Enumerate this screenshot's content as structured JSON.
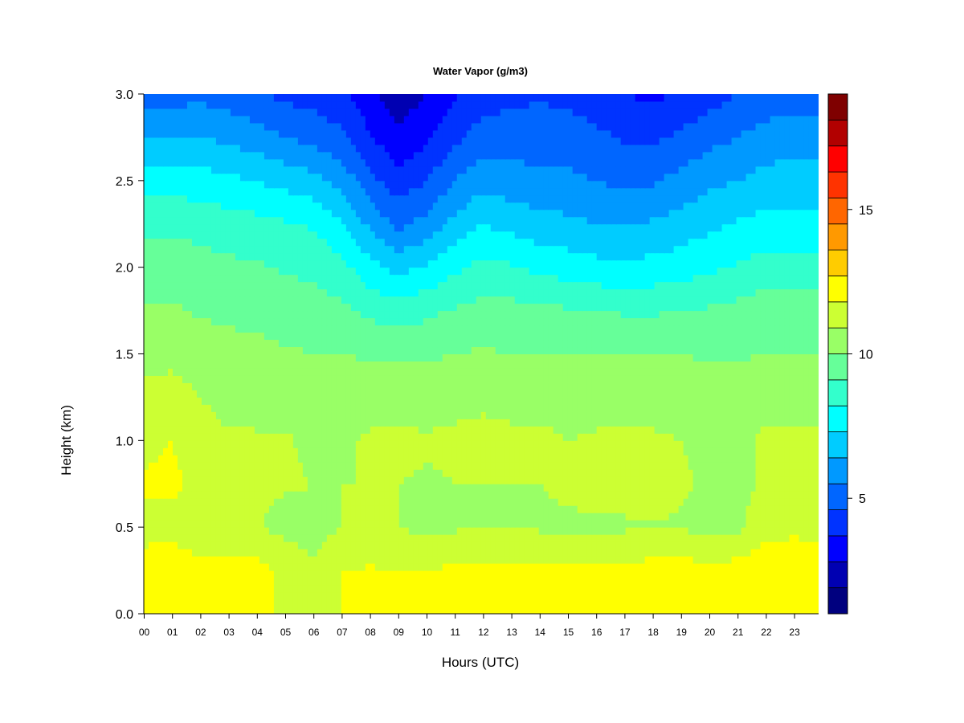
{
  "chart_data": {
    "type": "heatmap",
    "title": "Water Vapor (g/m3)",
    "xlabel": "Hours (UTC)",
    "ylabel": "Height (km)",
    "xlim": [
      0,
      24
    ],
    "ylim": [
      0.0,
      3.0
    ],
    "x_ticks": [
      "00",
      "01",
      "02",
      "03",
      "04",
      "05",
      "06",
      "07",
      "08",
      "09",
      "10",
      "11",
      "12",
      "13",
      "14",
      "15",
      "16",
      "17",
      "18",
      "19",
      "20",
      "21",
      "22",
      "23"
    ],
    "y_ticks": [
      "0.0",
      "0.5",
      "1.0",
      "1.5",
      "2.0",
      "2.5",
      "3.0"
    ],
    "colorbar": {
      "min": 1,
      "max": 19,
      "ticks": [
        "5",
        "10",
        "15"
      ],
      "tick_values": [
        5,
        10,
        15
      ],
      "levels": [
        1,
        2,
        3,
        4,
        5,
        6,
        7,
        8,
        9,
        10,
        11,
        12,
        13,
        14,
        15,
        16,
        17,
        18,
        19
      ],
      "colors": [
        "#00007F",
        "#0000B2",
        "#0000FF",
        "#0033FF",
        "#0066FF",
        "#0099FF",
        "#00CCFF",
        "#00FFFF",
        "#33FFCC",
        "#66FF99",
        "#99FF66",
        "#CCFF33",
        "#FFFF00",
        "#FFCC00",
        "#FF9900",
        "#FF6600",
        "#FF3300",
        "#FF0000",
        "#B20000",
        "#7F0000"
      ]
    },
    "hours": [
      0,
      1,
      2,
      3,
      4,
      5,
      6,
      7,
      8,
      9,
      10,
      11,
      12,
      13,
      14,
      15,
      16,
      17,
      18,
      19,
      20,
      21,
      22,
      23,
      24
    ],
    "heights_km": [
      0.0,
      0.25,
      0.5,
      0.75,
      1.0,
      1.25,
      1.5,
      1.75,
      2.0,
      2.25,
      2.5,
      2.75,
      3.0
    ],
    "values": [
      [
        11.8,
        11.8,
        11.8,
        11.8,
        11.8,
        11.8,
        11.8,
        11.8,
        11.8,
        11.8,
        11.8,
        11.8,
        11.8,
        11.8,
        11.8,
        11.8,
        11.8,
        11.8,
        11.8,
        11.8,
        11.8,
        11.8,
        11.8,
        11.8,
        11.8
      ],
      [
        12.2,
        12.3,
        12.0,
        12.1,
        12.1,
        11.6,
        11.0,
        11.8,
        11.9,
        11.8,
        11.8,
        12.0,
        12.0,
        12.0,
        12.0,
        11.9,
        11.9,
        12.0,
        12.2,
        12.3,
        12.0,
        12.2,
        12.4,
        12.5,
        12.3
      ],
      [
        11.5,
        11.5,
        11.4,
        11.0,
        11.0,
        10.6,
        10.6,
        10.9,
        10.9,
        10.9,
        10.7,
        10.8,
        10.8,
        10.8,
        10.8,
        10.8,
        10.8,
        10.8,
        10.8,
        10.8,
        10.7,
        10.7,
        11.5,
        11.6,
        11.5
      ],
      [
        11.9,
        12.0,
        11.5,
        11.3,
        11.0,
        11.0,
        10.9,
        10.9,
        10.9,
        10.9,
        10.8,
        10.9,
        10.9,
        10.9,
        10.9,
        11.0,
        11.1,
        11.2,
        11.4,
        11.0,
        10.8,
        10.7,
        11.0,
        11.0,
        11.0
      ],
      [
        11.6,
        11.8,
        11.3,
        11.0,
        11.0,
        11.0,
        10.7,
        10.8,
        11.0,
        11.1,
        11.0,
        11.1,
        11.2,
        11.1,
        11.1,
        10.9,
        11.0,
        11.0,
        11.0,
        10.9,
        10.7,
        10.6,
        11.1,
        11.0,
        11.0
      ],
      [
        11.1,
        11.2,
        10.9,
        10.6,
        10.6,
        10.5,
        10.4,
        10.5,
        10.6,
        10.6,
        10.5,
        10.6,
        10.7,
        10.6,
        10.6,
        10.6,
        10.6,
        10.6,
        10.6,
        10.6,
        10.5,
        10.5,
        10.6,
        10.6,
        10.6
      ],
      [
        10.6,
        10.7,
        10.5,
        10.3,
        10.2,
        10.1,
        10.0,
        10.0,
        9.9,
        9.8,
        9.9,
        10.0,
        10.1,
        10.0,
        10.0,
        10.0,
        10.0,
        10.0,
        10.0,
        10.0,
        9.9,
        9.9,
        10.0,
        10.0,
        10.0
      ],
      [
        10.1,
        10.1,
        9.9,
        9.8,
        9.8,
        9.6,
        9.5,
        9.3,
        8.9,
        8.6,
        8.9,
        9.2,
        9.4,
        9.4,
        9.3,
        9.2,
        9.1,
        9.0,
        9.0,
        9.1,
        9.2,
        9.4,
        9.6,
        9.6,
        9.6
      ],
      [
        9.6,
        9.6,
        9.4,
        9.3,
        9.2,
        9.0,
        8.9,
        8.5,
        7.6,
        7.0,
        7.4,
        8.0,
        8.5,
        8.3,
        8.0,
        7.8,
        7.6,
        7.5,
        7.6,
        7.8,
        8.0,
        8.3,
        8.6,
        8.6,
        8.6
      ],
      [
        8.9,
        8.9,
        8.8,
        8.6,
        8.5,
        8.3,
        8.1,
        7.4,
        6.2,
        5.3,
        5.8,
        6.7,
        7.3,
        7.0,
        6.7,
        6.6,
        6.4,
        6.3,
        6.5,
        6.8,
        7.1,
        7.4,
        7.6,
        7.6,
        7.6
      ],
      [
        7.8,
        7.8,
        7.7,
        7.5,
        7.3,
        7.0,
        6.7,
        6.1,
        4.9,
        4.1,
        4.6,
        5.5,
        6.1,
        5.9,
        5.8,
        5.7,
        5.5,
        5.3,
        5.4,
        5.8,
        6.2,
        6.4,
        6.7,
        6.8,
        6.8
      ],
      [
        6.3,
        6.4,
        6.4,
        6.2,
        5.9,
        5.5,
        5.2,
        4.8,
        3.8,
        3.0,
        3.5,
        4.4,
        5.0,
        5.0,
        5.0,
        5.0,
        4.8,
        4.5,
        4.4,
        4.8,
        5.2,
        5.5,
        5.9,
        6.0,
        6.0
      ],
      [
        5.0,
        5.1,
        5.3,
        5.0,
        4.7,
        4.4,
        4.2,
        3.9,
        3.0,
        2.3,
        2.8,
        3.6,
        4.2,
        4.4,
        4.5,
        4.4,
        4.1,
        3.7,
        3.5,
        3.8,
        4.2,
        4.6,
        4.9,
        5.0,
        5.0
      ]
    ]
  }
}
